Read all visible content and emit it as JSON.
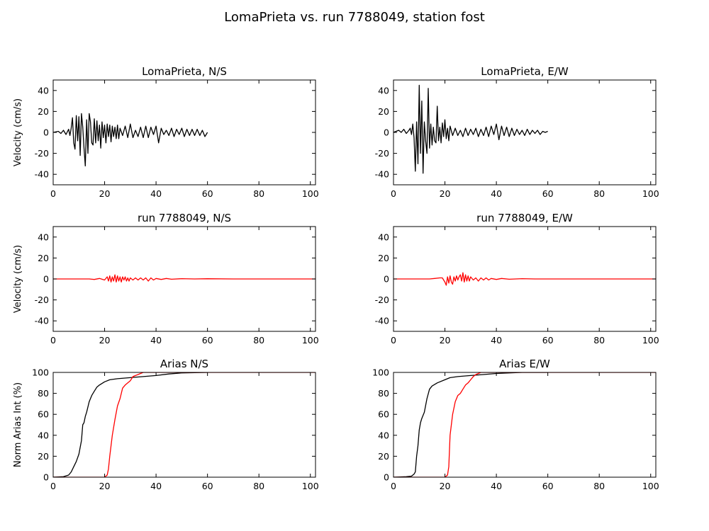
{
  "figure": {
    "title": "LomaPrieta vs. run 7788049, station fost"
  },
  "colors": {
    "observed": "#000000",
    "simulated": "#ff0000"
  },
  "chart_data": [
    {
      "id": "obs-ns",
      "type": "line",
      "title": "LomaPrieta, N/S",
      "xlabel": "",
      "ylabel": "Velocity (cm/s)",
      "xlim": [
        0,
        102
      ],
      "ylim": [
        -50,
        50
      ],
      "xticks": [
        0,
        20,
        40,
        60,
        80,
        100
      ],
      "yticks": [
        -40,
        -20,
        0,
        20,
        40
      ],
      "series": [
        {
          "color": "#000000",
          "x": [
            0,
            2,
            3,
            4,
            5,
            6,
            6.5,
            7,
            7.5,
            8,
            8.5,
            9,
            9.5,
            10,
            10.5,
            11,
            11.5,
            12,
            12.5,
            13,
            13.5,
            14,
            14.5,
            15,
            15.5,
            16,
            16.5,
            17,
            17.5,
            18,
            18.5,
            19,
            19.5,
            20,
            20.5,
            21,
            21.5,
            22,
            22.5,
            23,
            23.5,
            24,
            24.5,
            25,
            25.5,
            26,
            27,
            28,
            29,
            30,
            31,
            32,
            33,
            34,
            35,
            36,
            37,
            38,
            39,
            40,
            41,
            42,
            43,
            44,
            45,
            46,
            47,
            48,
            49,
            50,
            51,
            52,
            53,
            54,
            55,
            56,
            57,
            58,
            59,
            60
          ],
          "y": [
            0,
            1,
            -1,
            2,
            -2,
            3,
            -3,
            4,
            14,
            -10,
            -16,
            16,
            -8,
            15,
            -22,
            18,
            5,
            -15,
            -32,
            12,
            -20,
            18,
            10,
            -10,
            -12,
            13,
            -10,
            11,
            -8,
            7,
            -15,
            10,
            -5,
            7,
            -10,
            8,
            -4,
            7,
            -9,
            6,
            -4,
            5,
            -6,
            7,
            -6,
            4,
            -3,
            6,
            -5,
            8,
            -5,
            2,
            -4,
            5,
            -5,
            6,
            -5,
            5,
            -2,
            6,
            -10,
            4,
            -2,
            2,
            -3,
            4,
            -4,
            3,
            -2,
            4,
            -4,
            3,
            -3,
            3,
            -3,
            3,
            -3,
            2,
            -4,
            0
          ]
        }
      ]
    },
    {
      "id": "obs-ew",
      "type": "line",
      "title": "LomaPrieta, E/W",
      "xlabel": "",
      "ylabel": "",
      "xlim": [
        0,
        102
      ],
      "ylim": [
        -50,
        50
      ],
      "xticks": [
        0,
        20,
        40,
        60,
        80,
        100
      ],
      "yticks": [
        -40,
        -20,
        0,
        20,
        40
      ],
      "series": [
        {
          "color": "#000000",
          "x": [
            0,
            2,
            3,
            4,
            5,
            6,
            6.5,
            7,
            7.5,
            8,
            8.5,
            9,
            9.5,
            10,
            10.5,
            11,
            11.5,
            12,
            12.5,
            13,
            13.5,
            14,
            14.5,
            15,
            15.5,
            16,
            16.5,
            17,
            17.5,
            18,
            18.5,
            19,
            19.5,
            20,
            20.5,
            21,
            21.5,
            22,
            23,
            24,
            25,
            26,
            27,
            28,
            29,
            30,
            31,
            32,
            33,
            34,
            35,
            36,
            37,
            38,
            39,
            40,
            41,
            42,
            43,
            44,
            45,
            46,
            47,
            48,
            49,
            50,
            51,
            52,
            53,
            54,
            55,
            56,
            57,
            58,
            59,
            60
          ],
          "y": [
            0,
            2,
            0,
            3,
            -1,
            2,
            4,
            -2,
            8,
            -5,
            -37,
            10,
            -30,
            45,
            -20,
            30,
            -39,
            10,
            -8,
            -20,
            42,
            -15,
            8,
            -12,
            5,
            -8,
            -10,
            25,
            -8,
            5,
            -10,
            9,
            -4,
            12,
            -6,
            4,
            -8,
            6,
            -3,
            4,
            -3,
            2,
            -4,
            4,
            -3,
            3,
            -2,
            4,
            -4,
            3,
            -3,
            5,
            -4,
            6,
            -2,
            8,
            -7,
            6,
            -3,
            5,
            -4,
            4,
            -3,
            3,
            -2,
            2,
            -3,
            3,
            -2,
            2,
            -1,
            2,
            -2,
            1,
            0,
            1
          ]
        }
      ]
    },
    {
      "id": "sim-ns",
      "type": "line",
      "title": "run 7788049, N/S",
      "xlabel": "",
      "ylabel": "Velocity (cm/s)",
      "xlim": [
        0,
        102
      ],
      "ylim": [
        -50,
        50
      ],
      "xticks": [
        0,
        20,
        40,
        60,
        80,
        100
      ],
      "yticks": [
        -40,
        -20,
        0,
        20,
        40
      ],
      "series": [
        {
          "color": "#ff0000",
          "x": [
            0,
            14,
            16,
            18,
            20,
            21,
            21.5,
            22,
            22.5,
            23,
            23.5,
            24,
            24.5,
            25,
            25.5,
            26,
            26.5,
            27,
            27.5,
            28,
            28.5,
            29,
            29.5,
            30,
            31,
            32,
            33,
            34,
            35,
            36,
            37,
            38,
            39,
            40,
            42,
            44,
            46,
            50,
            55,
            60,
            70,
            80,
            90,
            102
          ],
          "y": [
            0,
            0,
            -0.5,
            0.5,
            -1,
            2,
            -2,
            3,
            -3,
            2,
            -2,
            4,
            -3,
            3,
            -2,
            2,
            -3,
            2,
            -1,
            2,
            -2,
            1,
            -2,
            1,
            -1,
            1,
            -1,
            1,
            -1,
            1,
            -2,
            1,
            -1,
            0.5,
            -0.5,
            0.5,
            -0.3,
            0.3,
            0,
            0.2,
            0,
            0,
            0,
            0
          ]
        }
      ]
    },
    {
      "id": "sim-ew",
      "type": "line",
      "title": "run 7788049, E/W",
      "xlabel": "",
      "ylabel": "",
      "xlim": [
        0,
        102
      ],
      "ylim": [
        -50,
        50
      ],
      "xticks": [
        0,
        20,
        40,
        60,
        80,
        100
      ],
      "yticks": [
        -40,
        -20,
        0,
        20,
        40
      ],
      "series": [
        {
          "color": "#ff0000",
          "x": [
            0,
            14,
            16,
            18,
            19,
            20,
            20.5,
            21,
            21.5,
            22,
            22.5,
            23,
            23.5,
            24,
            24.5,
            25,
            25.5,
            26,
            26.5,
            27,
            27.5,
            28,
            28.5,
            29,
            29.5,
            30,
            31,
            32,
            33,
            34,
            35,
            36,
            37,
            38,
            40,
            42,
            45,
            50,
            55,
            60,
            70,
            80,
            90,
            102
          ],
          "y": [
            0,
            0,
            0.5,
            1,
            1,
            -3,
            -6,
            2,
            -4,
            3,
            -3,
            -5,
            2,
            -2,
            3,
            -1,
            2,
            4,
            -2,
            6,
            -3,
            4,
            -2,
            3,
            -2,
            2,
            -1,
            1,
            -2,
            1,
            -1,
            1,
            -1,
            0.5,
            -0.5,
            0.5,
            -0.3,
            0.3,
            0,
            0,
            0,
            0,
            0,
            0
          ]
        }
      ]
    },
    {
      "id": "arias-ns",
      "type": "line",
      "title": "Arias N/S",
      "xlabel": "",
      "ylabel": "Norm Arias Int (%)",
      "xlim": [
        0,
        102
      ],
      "ylim": [
        0,
        100
      ],
      "xticks": [
        0,
        20,
        40,
        60,
        80,
        100
      ],
      "yticks": [
        0,
        20,
        40,
        60,
        80,
        100
      ],
      "series": [
        {
          "color": "#000000",
          "x": [
            0,
            4,
            6,
            7,
            8,
            9,
            10,
            11,
            11.5,
            12,
            12.5,
            13,
            14,
            15,
            16,
            17,
            18,
            20,
            22,
            25,
            30,
            35,
            40,
            45,
            50,
            60
          ],
          "y": [
            0,
            0.5,
            2,
            5,
            10,
            15,
            22,
            35,
            50,
            52,
            58,
            62,
            72,
            78,
            82,
            86,
            88,
            91,
            93,
            94,
            95,
            96,
            97,
            98.5,
            99.5,
            100
          ]
        },
        {
          "color": "#ff0000",
          "x": [
            0,
            20,
            21,
            21.5,
            22,
            23,
            24,
            25,
            26,
            27,
            28,
            29,
            30,
            31,
            32,
            33,
            34,
            35,
            40,
            50,
            60,
            102
          ],
          "y": [
            0,
            0,
            2,
            8,
            20,
            40,
            55,
            68,
            75,
            85,
            88,
            90,
            92,
            96,
            97,
            98,
            99,
            100,
            100,
            100,
            100,
            100
          ]
        }
      ]
    },
    {
      "id": "arias-ew",
      "type": "line",
      "title": "Arias E/W",
      "xlabel": "",
      "ylabel": "",
      "xlim": [
        0,
        102
      ],
      "ylim": [
        0,
        100
      ],
      "xticks": [
        0,
        20,
        40,
        60,
        80,
        100
      ],
      "yticks": [
        0,
        20,
        40,
        60,
        80,
        100
      ],
      "series": [
        {
          "color": "#000000",
          "x": [
            0,
            5,
            7,
            8,
            8.5,
            9,
            9.5,
            10,
            10.5,
            11,
            12,
            13,
            14,
            15,
            17,
            20,
            22,
            25,
            30,
            35,
            40,
            45,
            50,
            60
          ],
          "y": [
            0,
            0.5,
            1,
            3,
            5,
            20,
            30,
            45,
            52,
            56,
            62,
            75,
            84,
            87,
            90,
            93,
            95,
            96,
            97,
            98,
            99,
            99.5,
            100,
            100
          ]
        },
        {
          "color": "#ff0000",
          "x": [
            0,
            20,
            21,
            21.5,
            22,
            22.5,
            23,
            24,
            25,
            26,
            27,
            28,
            29,
            30,
            31,
            32,
            33,
            34,
            35,
            40,
            50,
            60,
            102
          ],
          "y": [
            0,
            0,
            2,
            10,
            40,
            50,
            60,
            72,
            78,
            80,
            84,
            88,
            90,
            93,
            96,
            98,
            99,
            100,
            100,
            100,
            100,
            100,
            100
          ]
        }
      ]
    }
  ]
}
